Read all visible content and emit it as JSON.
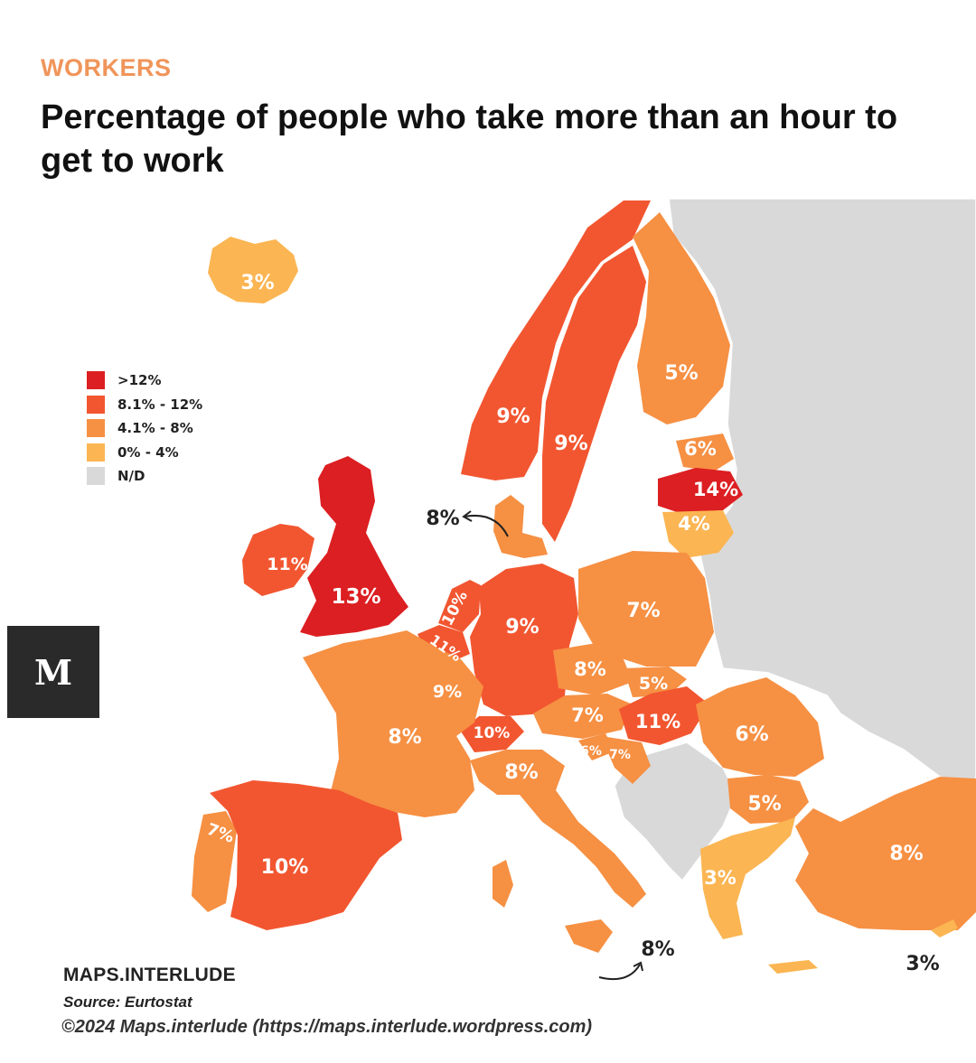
{
  "header": {
    "kicker": "WORKERS",
    "title": "Percentage of people who take more than an hour to get to work"
  },
  "legend": {
    "items": [
      {
        "label": ">12%",
        "color": "#dc1f22"
      },
      {
        "label": "8.1% - 12%",
        "color": "#f25630"
      },
      {
        "label": "4.1% - 8%",
        "color": "#f69043"
      },
      {
        "label": "0% - 4%",
        "color": "#fbb552"
      },
      {
        "label": "N/D",
        "color": "#d9d9d9"
      }
    ]
  },
  "regions": [
    {
      "name": "Iceland",
      "label": "3%"
    },
    {
      "name": "Norway",
      "label": "9%"
    },
    {
      "name": "Sweden",
      "label": "9%"
    },
    {
      "name": "Finland",
      "label": "5%"
    },
    {
      "name": "Estonia",
      "label": "6%"
    },
    {
      "name": "Latvia",
      "label": "14%"
    },
    {
      "name": "Lithuania",
      "label": "4%"
    },
    {
      "name": "Denmark",
      "label": "8%"
    },
    {
      "name": "Ireland",
      "label": "11%"
    },
    {
      "name": "United Kingdom",
      "label": "13%"
    },
    {
      "name": "Netherlands",
      "label": "10%"
    },
    {
      "name": "Belgium",
      "label": "11%"
    },
    {
      "name": "Luxembourg",
      "label": "9%"
    },
    {
      "name": "Germany",
      "label": "9%"
    },
    {
      "name": "Poland",
      "label": "7%"
    },
    {
      "name": "Czechia",
      "label": "8%"
    },
    {
      "name": "Slovakia",
      "label": "5%"
    },
    {
      "name": "Austria",
      "label": "7%"
    },
    {
      "name": "Hungary",
      "label": "11%"
    },
    {
      "name": "Switzerland",
      "label": "10%"
    },
    {
      "name": "France",
      "label": "8%"
    },
    {
      "name": "Slovenia",
      "label": "6%"
    },
    {
      "name": "Croatia",
      "label": "7%"
    },
    {
      "name": "Romania",
      "label": "6%"
    },
    {
      "name": "Italy",
      "label": "8%"
    },
    {
      "name": "Bulgaria",
      "label": "5%"
    },
    {
      "name": "Portugal",
      "label": "7%"
    },
    {
      "name": "Spain",
      "label": "10%"
    },
    {
      "name": "Greece",
      "label": "3%"
    },
    {
      "name": "Turkey",
      "label": "8%"
    },
    {
      "name": "Malta",
      "label": "8%"
    },
    {
      "name": "Cyprus",
      "label": "3%"
    }
  ],
  "logo": {
    "letter": "M"
  },
  "footer": {
    "brand": "MAPS.INTERLUDE",
    "source": "Source: Eurtostat",
    "copyright": "©2024 Maps.interlude (https://maps.interlude.wordpress.com)"
  }
}
